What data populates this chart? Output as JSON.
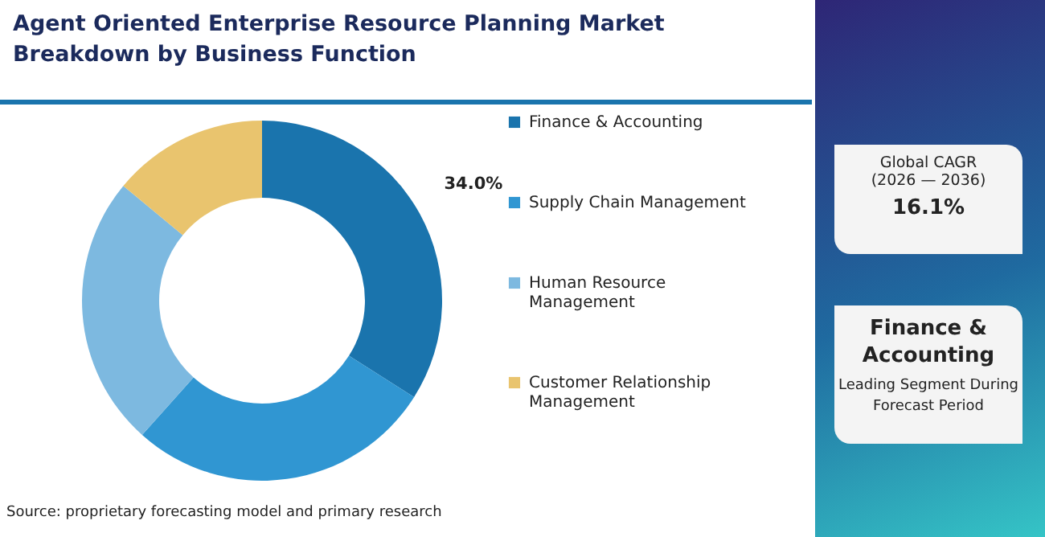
{
  "chart_data": {
    "type": "donut",
    "title": "Agent Oriented Enterprise Resource Planning Market Breakdown by Business Function",
    "categories": [
      "Finance & Accounting",
      "Supply Chain Management",
      "Human Resource Management",
      "Customer Relationship Management"
    ],
    "values": [
      34.0,
      27.6,
      24.4,
      14.0
    ],
    "colors": [
      "#1a74ad",
      "#3096d2",
      "#7db9e0",
      "#e9c46e"
    ],
    "value_labels": [
      "34.0%",
      null,
      null,
      null
    ],
    "legend": "right",
    "annotations": [
      "Source: proprietary forecasting model and primary research",
      "Global CAGR",
      "(2026 — 2036)",
      "16.1%",
      "Finance & Accounting",
      "Leading Segment During Forecast Period"
    ]
  }
}
